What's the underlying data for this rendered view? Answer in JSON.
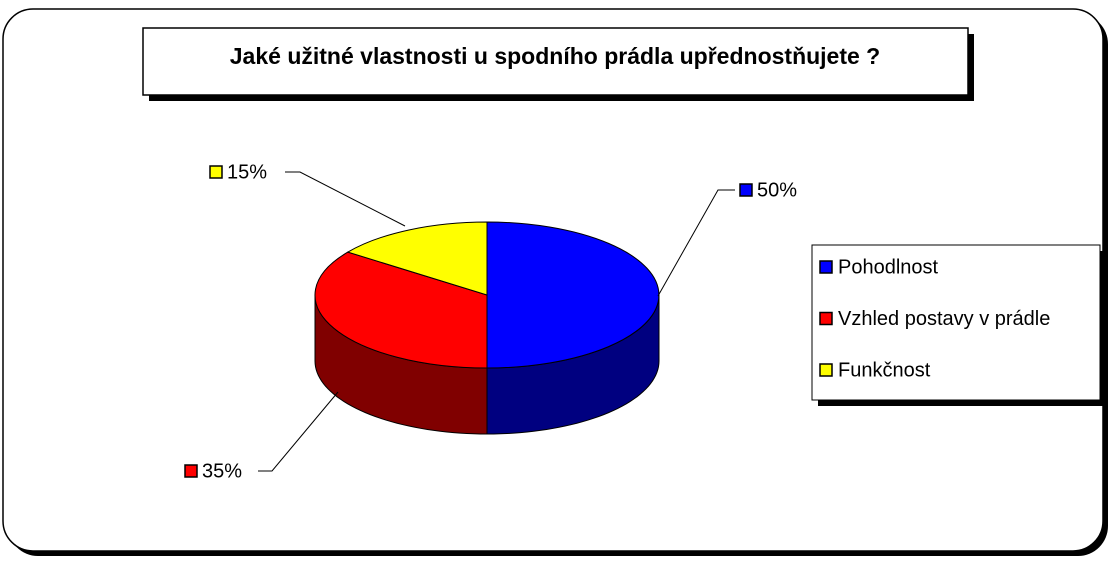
{
  "chart_data": {
    "type": "pie",
    "title": "Jaké užitné vlastnosti u spodního prádla upřednostňujete ?",
    "categories": [
      "Pohodlnost",
      "Vzhled postavy v prádle",
      "Funkčnost"
    ],
    "values": [
      50,
      35,
      15
    ],
    "value_labels": [
      "50%",
      "35%",
      "15%"
    ],
    "colors": [
      "#0000ff",
      "#ff0000",
      "#ffff00"
    ],
    "legend": "right"
  }
}
